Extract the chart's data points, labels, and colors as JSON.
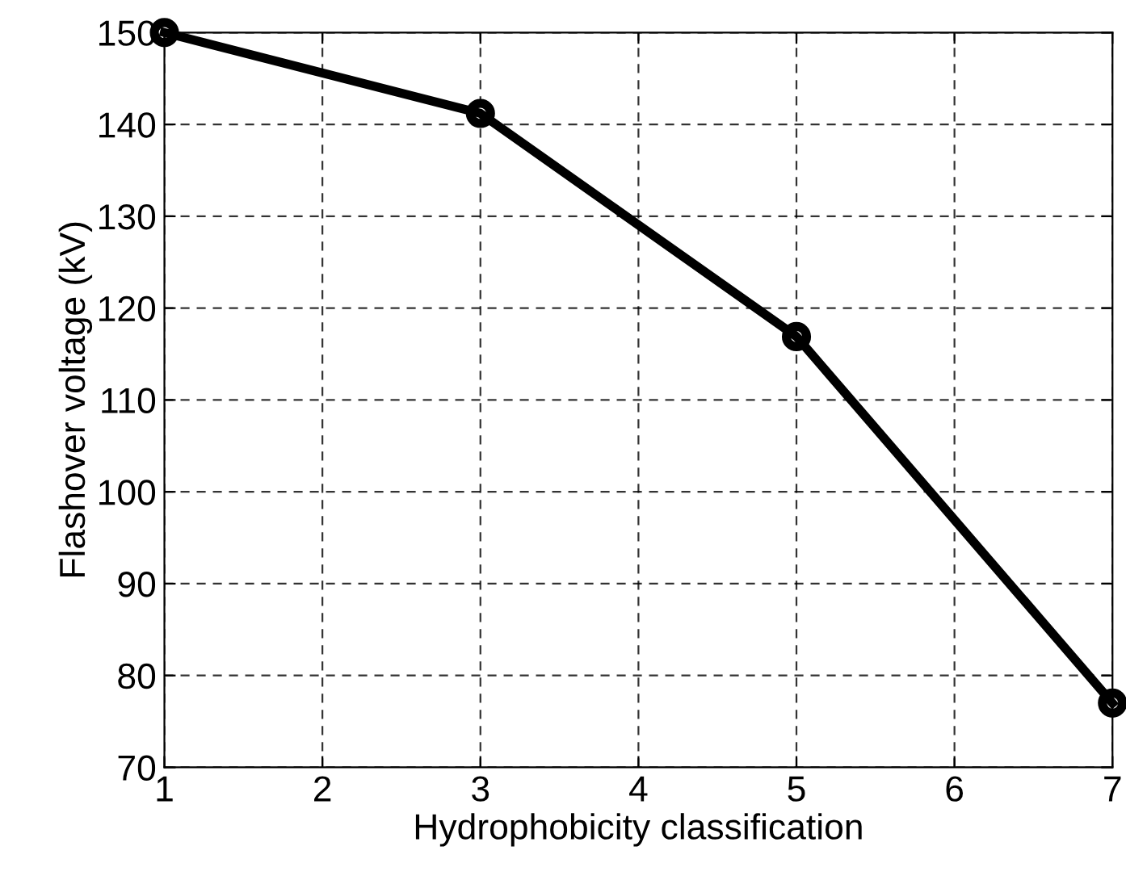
{
  "chart_data": {
    "type": "line",
    "xlabel": "Hydrophobicity classification",
    "ylabel": "Flashover voltage (kV)",
    "x": [
      1,
      3,
      5,
      7
    ],
    "series": [
      {
        "color": "#000000",
        "values": [
          150,
          141.2,
          116.9,
          77
        ]
      }
    ],
    "xlim": [
      1,
      7
    ],
    "xticks": [
      1,
      2,
      3,
      4,
      5,
      6,
      7
    ],
    "ylim": [
      70,
      150
    ],
    "yticks": [
      70,
      80,
      90,
      100,
      110,
      120,
      130,
      140,
      150
    ],
    "grid": true,
    "marker": "circle",
    "line_style": "solid"
  }
}
